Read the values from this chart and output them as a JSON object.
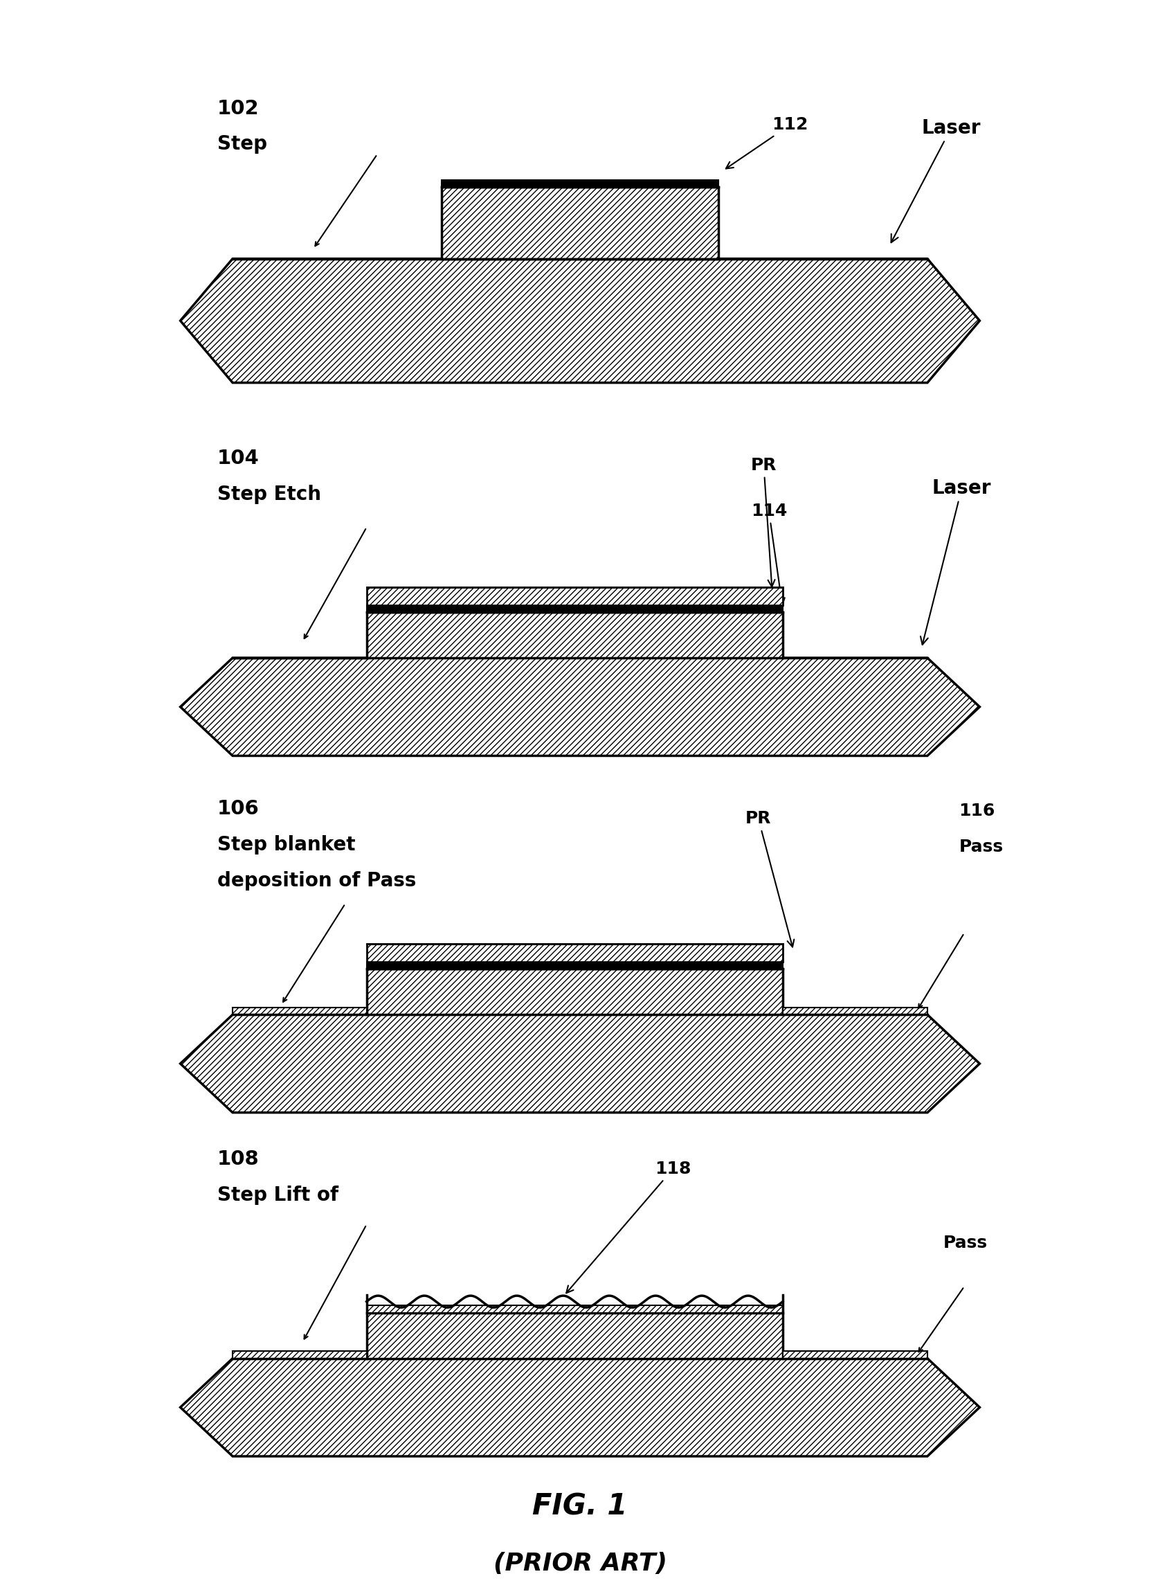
{
  "bg_color": "#ffffff",
  "fig_label": "FIG. 1",
  "fig_sublabel": "(PRIOR ART)",
  "hatch_dense": "////",
  "hatch_light": "////",
  "panels": [
    {
      "step_num": "102",
      "step_label_lines": [
        "Step"
      ],
      "has_step_substrate": false,
      "has_pr": false,
      "has_pass_sides": false,
      "has_wavy_top": false,
      "ridge_label": "112",
      "right_label_lines": [
        "Laser"
      ],
      "ridge_label_pos": "right_of_ridge"
    },
    {
      "step_num": "104",
      "step_label_lines": [
        "Step Etch"
      ],
      "has_step_substrate": true,
      "has_pr": true,
      "has_pass_sides": false,
      "has_wavy_top": false,
      "ridge_label": "114",
      "right_label_lines": [
        "Laser"
      ],
      "pr_label": "PR"
    },
    {
      "step_num": "106",
      "step_label_lines": [
        "Step blanket",
        "deposition of Pass"
      ],
      "has_step_substrate": true,
      "has_pr": true,
      "has_pass_sides": true,
      "has_wavy_top": false,
      "ridge_label": null,
      "right_label_lines": [
        "116",
        "Pass"
      ],
      "pr_label": "PR"
    },
    {
      "step_num": "108",
      "step_label_lines": [
        "Step Lift of"
      ],
      "has_step_substrate": true,
      "has_pr": false,
      "has_pass_sides": true,
      "has_wavy_top": true,
      "ridge_label": "118",
      "right_label_lines": [
        "Pass"
      ],
      "pr_label": null
    }
  ]
}
